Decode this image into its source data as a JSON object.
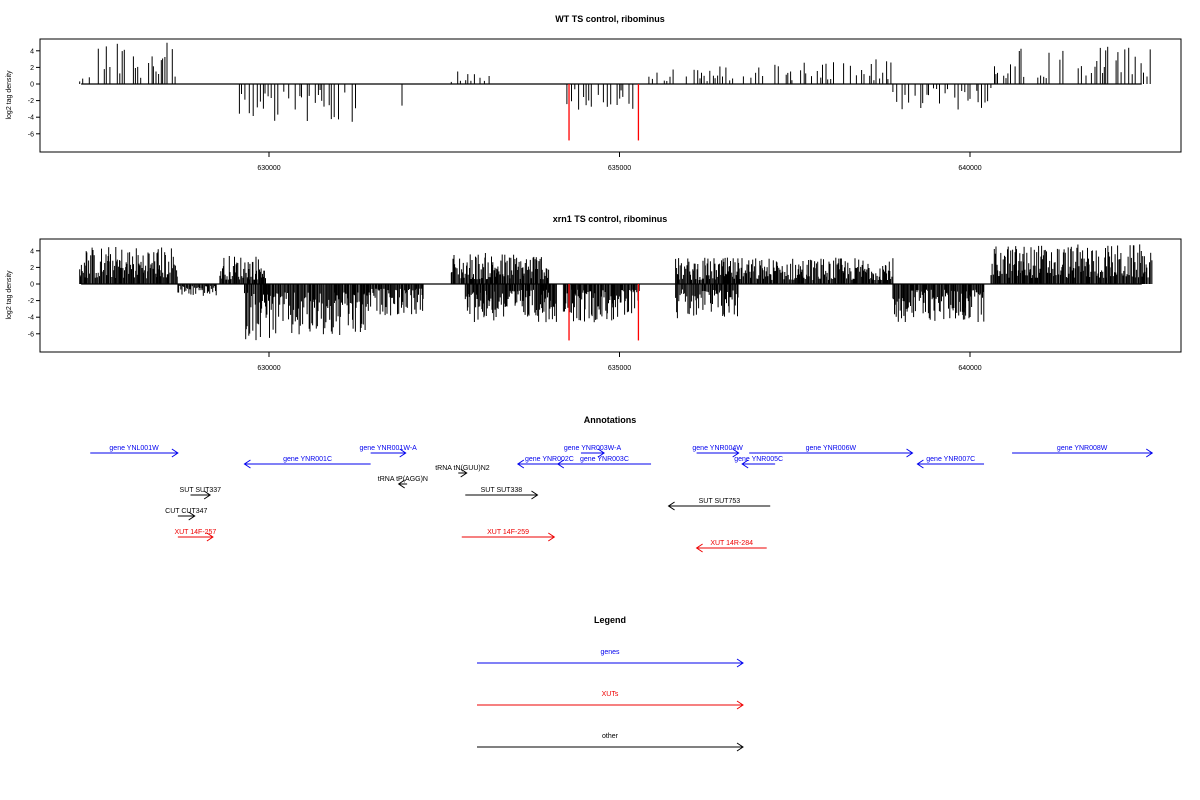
{
  "palette": {
    "gene": "#0000ee",
    "xut": "#ee0000",
    "other": "#000000",
    "highlight": "#ff0000",
    "bar": "#000000"
  },
  "chart_data": [
    {
      "type": "bar",
      "title": "WT TS control, ribominus",
      "ylabel": "log2 tag density",
      "xlim": [
        627300,
        642800
      ],
      "ylim": [
        -7.2,
        5.2
      ],
      "yticks": [
        -6,
        -4,
        -2,
        0,
        2,
        4
      ],
      "xticks": [
        630000,
        635000,
        640000
      ],
      "intensity": "sparse",
      "highlight_bars": [
        {
          "x": 634280,
          "y": -6.8
        },
        {
          "x": 635270,
          "y": -6.8
        }
      ],
      "density_profile": [
        {
          "x": [
            627300,
            627450
          ],
          "sign": 1,
          "max": 1.0
        },
        {
          "x": [
            627450,
            628700
          ],
          "sign": 1,
          "max": 5.0
        },
        {
          "x": [
            629550,
            631250
          ],
          "sign": -1,
          "max": 4.6
        },
        {
          "x": [
            631850,
            631950
          ],
          "sign": -1,
          "max": 4.4
        },
        {
          "x": [
            632600,
            633200
          ],
          "sign": 1,
          "max": 1.6
        },
        {
          "x": [
            634250,
            635250
          ],
          "sign": -1,
          "max": 4.0
        },
        {
          "x": [
            635400,
            636700
          ],
          "sign": 1,
          "max": 2.2
        },
        {
          "x": [
            636700,
            638900
          ],
          "sign": 1,
          "max": 3.0
        },
        {
          "x": [
            638900,
            640300
          ],
          "sign": -1,
          "max": 3.2
        },
        {
          "x": [
            640350,
            642600
          ],
          "sign": 1,
          "max": 4.6
        }
      ]
    },
    {
      "type": "bar",
      "title": "xrn1 TS control, ribominus",
      "ylabel": "log2 tag density",
      "xlim": [
        627300,
        642800
      ],
      "ylim": [
        -7.2,
        5.2
      ],
      "yticks": [
        -6,
        -4,
        -2,
        0,
        2,
        4
      ],
      "xticks": [
        630000,
        635000,
        640000
      ],
      "intensity": "dense",
      "highlight_bars": [
        {
          "x": 634280,
          "y": -6.8
        },
        {
          "x": 635270,
          "y": -6.8
        }
      ],
      "density_profile": [
        {
          "x": [
            627300,
            628700
          ],
          "sign": 1,
          "max": 4.6
        },
        {
          "x": [
            628700,
            629250
          ],
          "sign": -1,
          "max": 1.5
        },
        {
          "x": [
            629300,
            629950
          ],
          "sign": 1,
          "max": 3.5
        },
        {
          "x": [
            629650,
            631400
          ],
          "sign": -1,
          "max": 6.8
        },
        {
          "x": [
            631400,
            632200
          ],
          "sign": -1,
          "max": 3.8
        },
        {
          "x": [
            632600,
            634000
          ],
          "sign": 1,
          "max": 3.8
        },
        {
          "x": [
            632800,
            634100
          ],
          "sign": -1,
          "max": 4.6
        },
        {
          "x": [
            634200,
            635300
          ],
          "sign": -1,
          "max": 4.6
        },
        {
          "x": [
            635800,
            636700
          ],
          "sign": 1,
          "max": 3.2
        },
        {
          "x": [
            635800,
            636700
          ],
          "sign": -1,
          "max": 4.4
        },
        {
          "x": [
            636700,
            638900
          ],
          "sign": 1,
          "max": 3.2
        },
        {
          "x": [
            638900,
            640200
          ],
          "sign": -1,
          "max": 4.6
        },
        {
          "x": [
            640300,
            642600
          ],
          "sign": 1,
          "max": 4.8
        }
      ]
    }
  ],
  "annotations": {
    "title": "Annotations",
    "features": [
      {
        "label": "gene YNL001W",
        "start": 627450,
        "end": 628700,
        "dir": 1,
        "kind": "gene",
        "row": 0
      },
      {
        "label": "gene YNR001C",
        "start": 629650,
        "end": 631450,
        "dir": -1,
        "kind": "gene",
        "row": 1
      },
      {
        "label": "gene YNR001W-A",
        "start": 631450,
        "end": 631950,
        "dir": 1,
        "kind": "gene",
        "row": 0
      },
      {
        "label": "gene YNR002C",
        "start": 633550,
        "end": 634450,
        "dir": -1,
        "kind": "gene",
        "row": 1
      },
      {
        "label": "gene YNR003W-A",
        "start": 634450,
        "end": 634780,
        "dir": 1,
        "kind": "gene",
        "row": 0
      },
      {
        "label": "gene YNR003C",
        "start": 634120,
        "end": 635450,
        "dir": -1,
        "kind": "gene",
        "row": 1
      },
      {
        "label": "gene YNR004W",
        "start": 636100,
        "end": 636700,
        "dir": 1,
        "kind": "gene",
        "row": 0
      },
      {
        "label": "gene YNR005C",
        "start": 636750,
        "end": 637220,
        "dir": -1,
        "kind": "gene",
        "row": 1
      },
      {
        "label": "gene YNR006W",
        "start": 636850,
        "end": 639180,
        "dir": 1,
        "kind": "gene",
        "row": 0
      },
      {
        "label": "gene YNR007C",
        "start": 639250,
        "end": 640200,
        "dir": -1,
        "kind": "gene",
        "row": 1
      },
      {
        "label": "gene YNR008W",
        "start": 640600,
        "end": 642600,
        "dir": 1,
        "kind": "gene",
        "row": 0
      },
      {
        "label": "tRNA tN(GUU)N2",
        "start": 632700,
        "end": 632820,
        "dir": 1,
        "kind": "other",
        "row": 2
      },
      {
        "label": "tRNA tP(AGG)N",
        "start": 631850,
        "end": 631970,
        "dir": -1,
        "kind": "other",
        "row": 3
      },
      {
        "label": "SUT SUT337",
        "start": 628880,
        "end": 629160,
        "dir": 1,
        "kind": "other",
        "row": 4
      },
      {
        "label": "SUT SUT338",
        "start": 632800,
        "end": 633830,
        "dir": 1,
        "kind": "other",
        "row": 4
      },
      {
        "label": "SUT SUT753",
        "start": 635700,
        "end": 637150,
        "dir": -1,
        "kind": "other",
        "row": 5
      },
      {
        "label": "CUT CUT347",
        "start": 628700,
        "end": 628940,
        "dir": 1,
        "kind": "other",
        "row": 6
      },
      {
        "label": "XUT 14F-257",
        "start": 628700,
        "end": 629200,
        "dir": 1,
        "kind": "xut",
        "row": 7
      },
      {
        "label": "XUT 14F-259",
        "start": 632750,
        "end": 634070,
        "dir": 1,
        "kind": "xut",
        "row": 7
      },
      {
        "label": "XUT 14R-284",
        "start": 636100,
        "end": 637100,
        "dir": -1,
        "kind": "xut",
        "row": 8
      }
    ]
  },
  "legend": {
    "title": "Legend",
    "items": [
      {
        "label": "genes",
        "kind": "gene"
      },
      {
        "label": "XUTs",
        "kind": "xut"
      },
      {
        "label": "other",
        "kind": "other"
      }
    ]
  }
}
